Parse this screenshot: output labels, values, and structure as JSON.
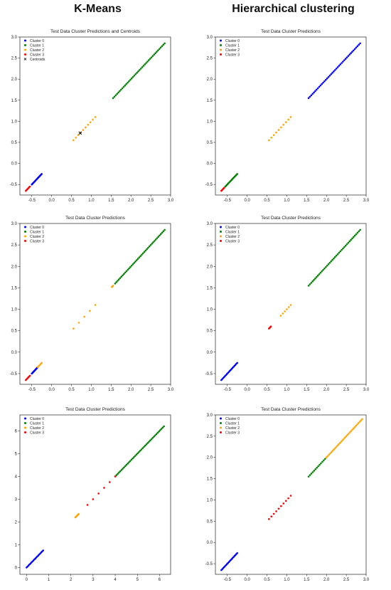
{
  "headers": {
    "left": "K-Means",
    "right": "Hierarchical clustering"
  },
  "colors": {
    "Cluster 0": "#0000ff",
    "Cluster 1": "#008000",
    "Cluster 2": "#ffa500",
    "Cluster 3": "#ff0000",
    "Centroids": "#000000"
  },
  "chart_data": [
    {
      "type": "scatter",
      "title": "Test Data Cluster Predictions and Centroids",
      "xlim": [
        -0.8,
        3.0
      ],
      "ylim": [
        -0.75,
        3.0
      ],
      "xticks": [
        "-0.5",
        "0.0",
        "0.5",
        "1.0",
        "1.5",
        "2.0",
        "2.5",
        "3.0"
      ],
      "yticks": [
        "-0.5",
        "0.0",
        "0.5",
        "1.0",
        "1.5",
        "2.0",
        "2.5",
        "3.0"
      ],
      "legend_position": "top-left",
      "series": [
        {
          "name": "Cluster 0",
          "x_range": [
            -0.5,
            -0.25
          ],
          "count": 16
        },
        {
          "name": "Cluster 1",
          "x_range": [
            1.55,
            2.85
          ],
          "count": 40
        },
        {
          "name": "Cluster 2",
          "x_range": [
            0.55,
            1.1
          ],
          "count": 10
        },
        {
          "name": "Cluster 3",
          "x_range": [
            -0.65,
            -0.55
          ],
          "count": 6
        },
        {
          "name": "Centroids",
          "points": [
            [
              0.72,
              0.72
            ]
          ],
          "marker": "x"
        }
      ]
    },
    {
      "type": "scatter",
      "title": "Test Data Cluster Predictions",
      "xlim": [
        -0.8,
        3.0
      ],
      "ylim": [
        -0.75,
        3.0
      ],
      "xticks": [
        "-0.5",
        "0.0",
        "0.5",
        "1.0",
        "1.5",
        "2.0",
        "2.5",
        "3.0"
      ],
      "yticks": [
        "-0.5",
        "0.0",
        "0.5",
        "1.0",
        "1.5",
        "2.0",
        "2.5",
        "3.0"
      ],
      "legend_position": "top-left",
      "series": [
        {
          "name": "Cluster 0",
          "x_range": [
            1.55,
            2.85
          ],
          "count": 40
        },
        {
          "name": "Cluster 1",
          "x_range": [
            -0.55,
            -0.25
          ],
          "count": 16
        },
        {
          "name": "Cluster 2",
          "x_range": [
            0.55,
            1.1
          ],
          "count": 10
        },
        {
          "name": "Cluster 3",
          "x_range": [
            -0.65,
            -0.58
          ],
          "count": 5
        }
      ]
    },
    {
      "type": "scatter",
      "title": "Test Data Cluster Predictions",
      "xlim": [
        -0.8,
        3.0
      ],
      "ylim": [
        -0.75,
        3.0
      ],
      "xticks": [
        "-0.5",
        "0.0",
        "0.5",
        "1.0",
        "1.5",
        "2.0",
        "2.5",
        "3.0"
      ],
      "yticks": [
        "-0.5",
        "0.0",
        "0.5",
        "1.0",
        "1.5",
        "2.0",
        "2.5",
        "3.0"
      ],
      "legend_position": "top-left",
      "series": [
        {
          "name": "Cluster 0",
          "x_range": [
            -0.5,
            -0.35
          ],
          "count": 14
        },
        {
          "name": "Cluster 1",
          "x_range": [
            1.6,
            2.85
          ],
          "count": 40
        },
        {
          "name": "Cluster 2",
          "x_range_list": [
            [
              -0.35,
              -0.25
            ],
            [
              0.55,
              1.1
            ],
            [
              1.52,
              1.55
            ]
          ],
          "count": 16
        },
        {
          "name": "Cluster 3",
          "x_range": [
            -0.65,
            -0.55
          ],
          "count": 6
        }
      ]
    },
    {
      "type": "scatter",
      "title": "Test Data Cluster Predictions",
      "xlim": [
        -0.8,
        3.0
      ],
      "ylim": [
        -0.75,
        3.0
      ],
      "xticks": [
        "-0.5",
        "0.0",
        "0.5",
        "1.0",
        "1.5",
        "2.0",
        "2.5",
        "3.0"
      ],
      "yticks": [
        "-0.5",
        "0.0",
        "0.5",
        "1.0",
        "1.5",
        "2.0",
        "2.5",
        "3.0"
      ],
      "legend_position": "top-left",
      "series": [
        {
          "name": "Cluster 0",
          "x_range": [
            -0.65,
            -0.25
          ],
          "count": 18
        },
        {
          "name": "Cluster 1",
          "x_range": [
            1.55,
            2.85
          ],
          "count": 40
        },
        {
          "name": "Cluster 2",
          "x_range": [
            0.85,
            1.1
          ],
          "count": 6
        },
        {
          "name": "Cluster 3",
          "x_range": [
            0.55,
            0.6
          ],
          "count": 4
        }
      ]
    },
    {
      "type": "scatter",
      "title": "Test Data Cluster Predictions",
      "xlim": [
        -0.3,
        6.5
      ],
      "ylim": [
        -0.3,
        6.7
      ],
      "xticks": [
        "0",
        "1",
        "2",
        "3",
        "4",
        "5",
        "6"
      ],
      "yticks": [
        "0",
        "1",
        "2",
        "3",
        "4",
        "5",
        "6"
      ],
      "legend_position": "top-left",
      "series": [
        {
          "name": "Cluster 0",
          "x_range": [
            0.0,
            0.75
          ],
          "count": 18
        },
        {
          "name": "Cluster 1",
          "x_range": [
            4.0,
            6.2
          ],
          "count": 40
        },
        {
          "name": "Cluster 2",
          "x_range": [
            2.2,
            2.35
          ],
          "count": 8
        },
        {
          "name": "Cluster 3",
          "x_range": [
            2.75,
            4.0
          ],
          "count": 6
        }
      ]
    },
    {
      "type": "scatter",
      "title": "Test Data Cluster Predictions",
      "xlim": [
        -0.8,
        3.0
      ],
      "ylim": [
        -0.75,
        3.0
      ],
      "xticks": [
        "-0.5",
        "0.0",
        "0.5",
        "1.0",
        "1.5",
        "2.0",
        "2.5",
        "3.0"
      ],
      "yticks": [
        "-0.5",
        "0.0",
        "0.5",
        "1.0",
        "1.5",
        "2.0",
        "2.5",
        "3.0"
      ],
      "legend_position": "top-left",
      "series": [
        {
          "name": "Cluster 0",
          "x_range": [
            -0.65,
            -0.25
          ],
          "count": 18
        },
        {
          "name": "Cluster 1",
          "x_range": [
            1.55,
            2.0
          ],
          "count": 14
        },
        {
          "name": "Cluster 2",
          "x_range": [
            2.0,
            2.9
          ],
          "count": 30
        },
        {
          "name": "Cluster 3",
          "x_range": [
            0.55,
            1.1
          ],
          "count": 10
        }
      ]
    }
  ]
}
